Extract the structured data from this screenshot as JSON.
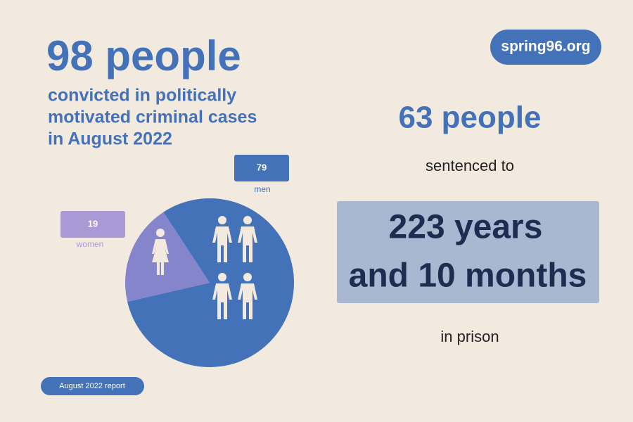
{
  "headline": "98 people",
  "subheadline": [
    "convicted in politically",
    "motivated criminal cases",
    "in August 2022"
  ],
  "logo": "spring96.org",
  "report": "August 2022 report",
  "sentenced_count": "63 people",
  "sentenced_to": "sentenced to",
  "term": [
    "223 years",
    "and 10 months"
  ],
  "in_prison": "in prison",
  "chart_data": {
    "type": "pie",
    "categories": [
      "men",
      "women"
    ],
    "values": [
      79,
      19
    ],
    "colors": [
      "#4472b8",
      "#8585cc"
    ]
  }
}
